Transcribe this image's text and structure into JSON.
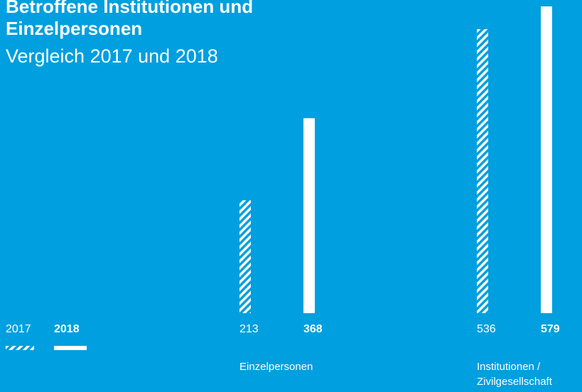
{
  "chart_data": {
    "type": "bar",
    "title": "Betroffene Institutionen und Einzelpersonen",
    "subtitle": "Vergleich 2017 und 2018",
    "categories": [
      "Einzelpersonen",
      "Institutionen / Zivilgesellschaft"
    ],
    "background": "#009fdf",
    "series": [
      {
        "name": "2017",
        "color": "#ffffff",
        "pattern": "hatched",
        "values": [
          213,
          536
        ]
      },
      {
        "name": "2018",
        "color": "#ffffff",
        "pattern": "solid",
        "values": [
          368,
          579
        ]
      }
    ]
  }
}
